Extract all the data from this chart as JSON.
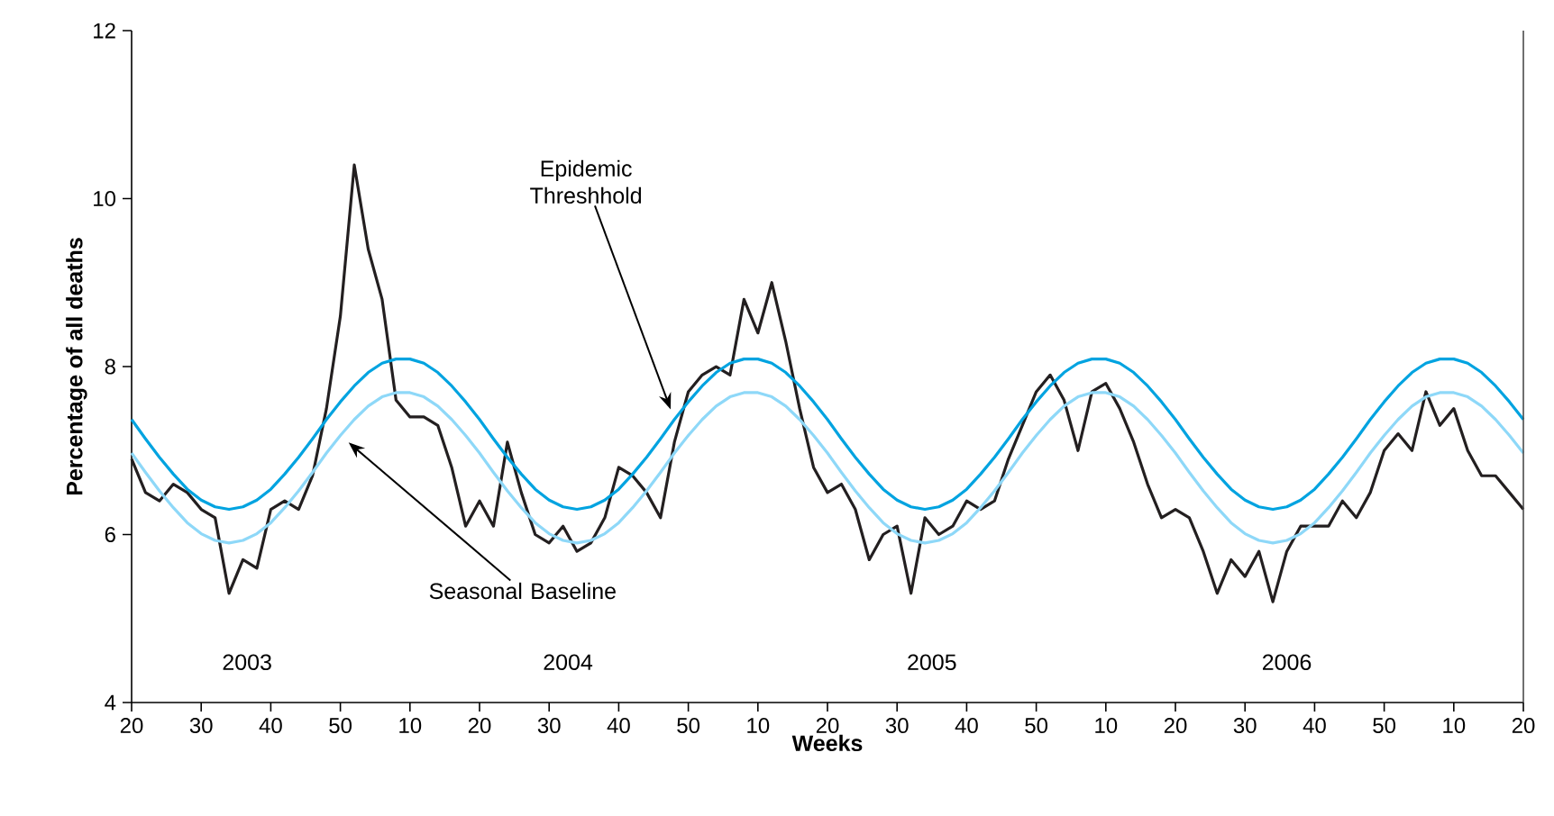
{
  "chart_data": {
    "type": "line",
    "xlabel": "Weeks",
    "ylabel": "Percentage of all deaths",
    "categories": [
      "20",
      null,
      null,
      null,
      null,
      "30",
      null,
      null,
      null,
      null,
      "40",
      null,
      null,
      null,
      null,
      "50",
      null,
      null,
      null,
      null,
      "10",
      null,
      null,
      null,
      null,
      "20",
      null,
      null,
      null,
      null,
      "30",
      null,
      null,
      null,
      null,
      "40",
      null,
      null,
      null,
      null,
      "50",
      null,
      null,
      null,
      null,
      "10",
      null,
      null,
      null,
      null,
      "20",
      null,
      null,
      null,
      null,
      "30",
      null,
      null,
      null,
      null,
      "40",
      null,
      null,
      null,
      null,
      "50",
      null,
      null,
      null,
      null,
      "10",
      null,
      null,
      null,
      null,
      "20",
      null,
      null,
      null,
      null,
      "30",
      null,
      null,
      null,
      null,
      "40",
      null,
      null,
      null,
      null,
      "50",
      null,
      null,
      null,
      null,
      "10",
      null,
      null,
      null,
      null,
      "20"
    ],
    "ylim": [
      4,
      12
    ],
    "yticks": [
      4,
      6,
      8,
      10,
      12
    ],
    "grid": false,
    "marker": "none",
    "line_style": "solid",
    "annotations": [
      "2003",
      "2004",
      "2005",
      "2006"
    ],
    "series": [
      {
        "color": "#231f20",
        "values": [
          6.9,
          6.5,
          6.4,
          6.6,
          6.5,
          6.3,
          6.2,
          5.3,
          5.7,
          5.6,
          6.3,
          6.4,
          6.3,
          6.7,
          7.5,
          8.6,
          10.4,
          9.4,
          8.8,
          7.6,
          7.4,
          7.4,
          7.3,
          6.8,
          6.1,
          6.4,
          6.1,
          7.1,
          6.5,
          6.0,
          5.9,
          6.1,
          5.8,
          5.9,
          6.2,
          6.8,
          6.7,
          6.5,
          6.2,
          7.1,
          7.7,
          7.9,
          8.0,
          7.9,
          8.8,
          8.4,
          9.0,
          8.3,
          7.5,
          6.8,
          6.5,
          6.6,
          6.3,
          5.7,
          6.0,
          6.1,
          5.3,
          6.2,
          6.0,
          6.1,
          6.4,
          6.3,
          6.4,
          6.9,
          7.3,
          7.7,
          7.9,
          7.6,
          7.0,
          7.7,
          7.8,
          7.5,
          7.1,
          6.6,
          6.2,
          6.3,
          6.2,
          5.8,
          5.3,
          5.7,
          5.5,
          5.8,
          5.2,
          5.8,
          6.1,
          6.1,
          6.1,
          6.4,
          6.2,
          6.5,
          7.0,
          7.2,
          7.0,
          7.7,
          7.3,
          7.5,
          7.0,
          6.7,
          6.7,
          6.5,
          6.3
        ]
      },
      {
        "name": "Epidemic Threshhold",
        "color": "#00a3e0",
        "values": [
          7.37,
          7.14,
          6.92,
          6.72,
          6.54,
          6.41,
          6.33,
          6.3,
          6.33,
          6.41,
          6.54,
          6.72,
          6.92,
          7.14,
          7.37,
          7.58,
          7.77,
          7.93,
          8.04,
          8.09,
          8.09,
          8.04,
          7.93,
          7.77,
          7.58,
          7.37,
          7.14,
          6.92,
          6.72,
          6.54,
          6.41,
          6.33,
          6.3,
          6.33,
          6.41,
          6.54,
          6.72,
          6.92,
          7.14,
          7.37,
          7.58,
          7.77,
          7.93,
          8.04,
          8.09,
          8.09,
          8.04,
          7.93,
          7.77,
          7.58,
          7.37,
          7.14,
          6.92,
          6.72,
          6.54,
          6.41,
          6.33,
          6.3,
          6.33,
          6.41,
          6.54,
          6.72,
          6.92,
          7.14,
          7.37,
          7.58,
          7.77,
          7.93,
          8.04,
          8.09,
          8.09,
          8.04,
          7.93,
          7.77,
          7.58,
          7.37,
          7.14,
          6.92,
          6.72,
          6.54,
          6.41,
          6.33,
          6.3,
          6.33,
          6.41,
          6.54,
          6.72,
          6.92,
          7.14,
          7.37,
          7.58,
          7.77,
          7.93,
          8.04,
          8.09,
          8.09,
          8.04,
          7.93,
          7.77,
          7.58,
          7.37
        ]
      },
      {
        "name": "Seasonal Baseline",
        "color": "#8ed8f8",
        "values": [
          6.97,
          6.74,
          6.52,
          6.32,
          6.14,
          6.01,
          5.93,
          5.9,
          5.93,
          6.01,
          6.14,
          6.32,
          6.52,
          6.74,
          6.97,
          7.18,
          7.37,
          7.53,
          7.64,
          7.69,
          7.69,
          7.64,
          7.53,
          7.37,
          7.18,
          6.97,
          6.74,
          6.52,
          6.32,
          6.14,
          6.01,
          5.93,
          5.9,
          5.93,
          6.01,
          6.14,
          6.32,
          6.52,
          6.74,
          6.97,
          7.18,
          7.37,
          7.53,
          7.64,
          7.69,
          7.69,
          7.64,
          7.53,
          7.37,
          7.18,
          6.97,
          6.74,
          6.52,
          6.32,
          6.14,
          6.01,
          5.93,
          5.9,
          5.93,
          6.01,
          6.14,
          6.32,
          6.52,
          6.74,
          6.97,
          7.18,
          7.37,
          7.53,
          7.64,
          7.69,
          7.69,
          7.64,
          7.53,
          7.37,
          7.18,
          6.97,
          6.74,
          6.52,
          6.32,
          6.14,
          6.01,
          5.93,
          5.9,
          5.93,
          6.01,
          6.14,
          6.32,
          6.52,
          6.74,
          6.97,
          7.18,
          7.37,
          7.53,
          7.64,
          7.69,
          7.69,
          7.64,
          7.53,
          7.37,
          7.18,
          6.97
        ]
      }
    ]
  }
}
